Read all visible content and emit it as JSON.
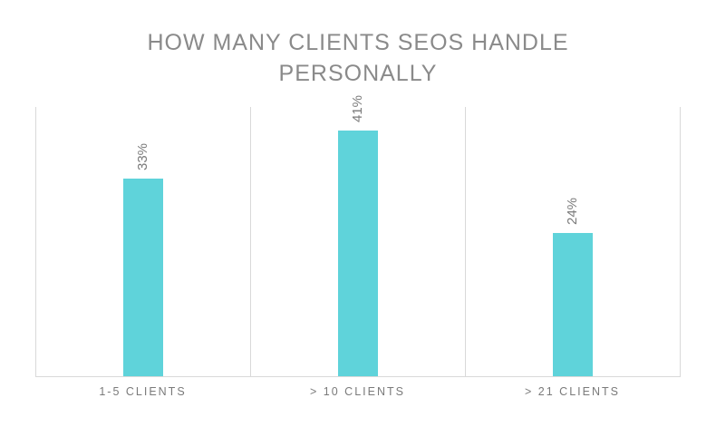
{
  "chart_data": {
    "type": "bar",
    "title": "HOW MANY CLIENTS SEOS HANDLE PERSONALLY",
    "title_lines": [
      "HOW MANY CLIENTS SEOS HANDLE",
      "PERSONALLY"
    ],
    "categories": [
      "1-5 CLIENTS",
      "> 10 CLIENTS",
      "> 21 CLIENTS"
    ],
    "values": [
      33,
      41,
      24
    ],
    "value_labels": [
      "33%",
      "41%",
      "24%"
    ],
    "xlabel": "",
    "ylabel": "",
    "ylim": [
      0,
      45
    ],
    "grid": "vertical category separators",
    "legend": "none",
    "bar_color": "#5fd3da"
  },
  "colors": {
    "bar": "#5fd3da",
    "text": "#8a8a8a",
    "grid": "#d9d9d9"
  }
}
